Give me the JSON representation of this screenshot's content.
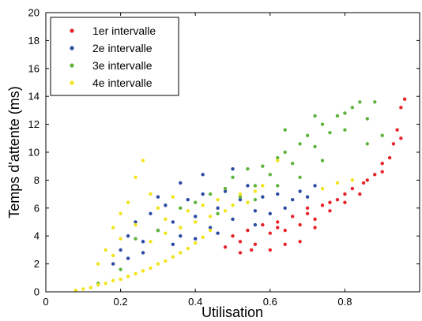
{
  "chart_data": {
    "type": "scatter",
    "title": "",
    "xlabel": "Utilisation",
    "ylabel": "Temps d'attente (ms)",
    "xlim": [
      0,
      1
    ],
    "ylim": [
      0,
      20
    ],
    "x_ticks": [
      0,
      0.2,
      0.4,
      0.6,
      0.8
    ],
    "x_tick_labels": [
      "0",
      "0.2",
      "0.4",
      "0.6",
      "0.8"
    ],
    "y_ticks": [
      0,
      2,
      4,
      6,
      8,
      10,
      12,
      14,
      16,
      18,
      20
    ],
    "y_tick_labels": [
      "0",
      "2",
      "4",
      "6",
      "8",
      "10",
      "12",
      "14",
      "16",
      "18",
      "20"
    ],
    "grid": false,
    "legend_position": "top-left",
    "series": [
      {
        "name": "1er intervalle",
        "color": "#e8232a",
        "points": [
          [
            0.48,
            3.2
          ],
          [
            0.5,
            4.0
          ],
          [
            0.52,
            3.6
          ],
          [
            0.54,
            4.4
          ],
          [
            0.56,
            3.4
          ],
          [
            0.58,
            4.8
          ],
          [
            0.6,
            4.2
          ],
          [
            0.62,
            5.0
          ],
          [
            0.64,
            4.4
          ],
          [
            0.66,
            5.4
          ],
          [
            0.68,
            4.8
          ],
          [
            0.7,
            6.0
          ],
          [
            0.72,
            5.2
          ],
          [
            0.74,
            6.2
          ],
          [
            0.76,
            5.8
          ],
          [
            0.78,
            6.6
          ],
          [
            0.8,
            6.4
          ],
          [
            0.82,
            7.4
          ],
          [
            0.84,
            7.0
          ],
          [
            0.86,
            8.0
          ],
          [
            0.88,
            8.4
          ],
          [
            0.9,
            9.2
          ],
          [
            0.92,
            9.6
          ],
          [
            0.93,
            10.6
          ],
          [
            0.94,
            11.6
          ],
          [
            0.95,
            13.2
          ],
          [
            0.96,
            13.8
          ],
          [
            0.95,
            11.0
          ],
          [
            0.9,
            8.6
          ],
          [
            0.85,
            7.8
          ],
          [
            0.8,
            7.0
          ],
          [
            0.76,
            6.4
          ],
          [
            0.72,
            4.6
          ],
          [
            0.68,
            3.6
          ],
          [
            0.64,
            3.4
          ],
          [
            0.6,
            3.0
          ],
          [
            0.55,
            3.0
          ],
          [
            0.52,
            2.8
          ],
          [
            0.62,
            4.6
          ],
          [
            0.7,
            5.6
          ]
        ]
      },
      {
        "name": "2e intervalle",
        "color": "#2b4ba3",
        "points": [
          [
            0.18,
            2.0
          ],
          [
            0.2,
            3.0
          ],
          [
            0.22,
            4.0
          ],
          [
            0.24,
            5.0
          ],
          [
            0.26,
            3.6
          ],
          [
            0.28,
            5.6
          ],
          [
            0.3,
            4.4
          ],
          [
            0.32,
            6.2
          ],
          [
            0.34,
            5.0
          ],
          [
            0.36,
            4.0
          ],
          [
            0.38,
            6.6
          ],
          [
            0.4,
            5.4
          ],
          [
            0.42,
            7.0
          ],
          [
            0.44,
            4.6
          ],
          [
            0.46,
            6.0
          ],
          [
            0.48,
            7.2
          ],
          [
            0.5,
            5.2
          ],
          [
            0.52,
            6.6
          ],
          [
            0.54,
            7.6
          ],
          [
            0.56,
            5.8
          ],
          [
            0.58,
            6.8
          ],
          [
            0.6,
            5.6
          ],
          [
            0.62,
            7.0
          ],
          [
            0.64,
            6.0
          ],
          [
            0.66,
            6.6
          ],
          [
            0.68,
            7.2
          ],
          [
            0.7,
            6.8
          ],
          [
            0.72,
            7.6
          ],
          [
            0.3,
            6.8
          ],
          [
            0.36,
            7.8
          ],
          [
            0.42,
            8.4
          ],
          [
            0.5,
            8.8
          ],
          [
            0.26,
            2.8
          ],
          [
            0.34,
            3.4
          ],
          [
            0.46,
            4.2
          ],
          [
            0.56,
            4.8
          ],
          [
            0.4,
            3.8
          ],
          [
            0.22,
            2.4
          ]
        ]
      },
      {
        "name": "3e intervalle",
        "color": "#5db43b",
        "points": [
          [
            0.14,
            0.6
          ],
          [
            0.2,
            1.6
          ],
          [
            0.24,
            3.8
          ],
          [
            0.3,
            4.4
          ],
          [
            0.36,
            6.0
          ],
          [
            0.4,
            6.4
          ],
          [
            0.44,
            7.0
          ],
          [
            0.48,
            7.4
          ],
          [
            0.5,
            8.2
          ],
          [
            0.52,
            6.8
          ],
          [
            0.54,
            8.8
          ],
          [
            0.56,
            7.6
          ],
          [
            0.58,
            9.0
          ],
          [
            0.6,
            8.4
          ],
          [
            0.62,
            9.6
          ],
          [
            0.64,
            10.0
          ],
          [
            0.66,
            9.2
          ],
          [
            0.68,
            10.6
          ],
          [
            0.7,
            11.2
          ],
          [
            0.72,
            10.4
          ],
          [
            0.74,
            12.0
          ],
          [
            0.76,
            11.4
          ],
          [
            0.78,
            12.6
          ],
          [
            0.8,
            12.8
          ],
          [
            0.82,
            13.2
          ],
          [
            0.84,
            13.6
          ],
          [
            0.86,
            12.4
          ],
          [
            0.88,
            13.6
          ],
          [
            0.9,
            11.2
          ],
          [
            0.86,
            10.6
          ],
          [
            0.8,
            11.6
          ],
          [
            0.74,
            9.4
          ],
          [
            0.68,
            8.2
          ],
          [
            0.62,
            7.6
          ],
          [
            0.56,
            6.6
          ],
          [
            0.46,
            5.6
          ],
          [
            0.64,
            11.6
          ],
          [
            0.72,
            12.6
          ]
        ]
      },
      {
        "name": "4e intervalle",
        "color": "#f2e41c",
        "points": [
          [
            0.08,
            0.1
          ],
          [
            0.1,
            0.2
          ],
          [
            0.12,
            0.3
          ],
          [
            0.14,
            0.5
          ],
          [
            0.16,
            0.6
          ],
          [
            0.18,
            0.8
          ],
          [
            0.2,
            0.9
          ],
          [
            0.22,
            1.1
          ],
          [
            0.24,
            1.3
          ],
          [
            0.26,
            1.5
          ],
          [
            0.28,
            1.7
          ],
          [
            0.3,
            2.0
          ],
          [
            0.32,
            2.2
          ],
          [
            0.34,
            2.5
          ],
          [
            0.36,
            2.8
          ],
          [
            0.38,
            3.1
          ],
          [
            0.4,
            3.5
          ],
          [
            0.42,
            3.9
          ],
          [
            0.44,
            4.4
          ],
          [
            0.16,
            3.0
          ],
          [
            0.18,
            4.6
          ],
          [
            0.2,
            5.6
          ],
          [
            0.22,
            6.4
          ],
          [
            0.24,
            8.2
          ],
          [
            0.26,
            9.4
          ],
          [
            0.28,
            7.0
          ],
          [
            0.3,
            6.0
          ],
          [
            0.32,
            5.2
          ],
          [
            0.34,
            6.8
          ],
          [
            0.36,
            4.6
          ],
          [
            0.38,
            5.8
          ],
          [
            0.4,
            5.0
          ],
          [
            0.42,
            6.2
          ],
          [
            0.44,
            5.4
          ],
          [
            0.46,
            6.6
          ],
          [
            0.48,
            5.8
          ],
          [
            0.5,
            6.2
          ],
          [
            0.52,
            7.0
          ],
          [
            0.54,
            6.4
          ],
          [
            0.56,
            7.2
          ],
          [
            0.58,
            7.6
          ],
          [
            0.62,
            9.4
          ],
          [
            0.18,
            2.6
          ],
          [
            0.14,
            2.0
          ],
          [
            0.2,
            3.8
          ],
          [
            0.24,
            4.8
          ],
          [
            0.28,
            3.6
          ],
          [
            0.32,
            4.2
          ],
          [
            0.74,
            7.4
          ],
          [
            0.78,
            7.8
          ],
          [
            0.82,
            8.0
          ]
        ]
      }
    ]
  }
}
